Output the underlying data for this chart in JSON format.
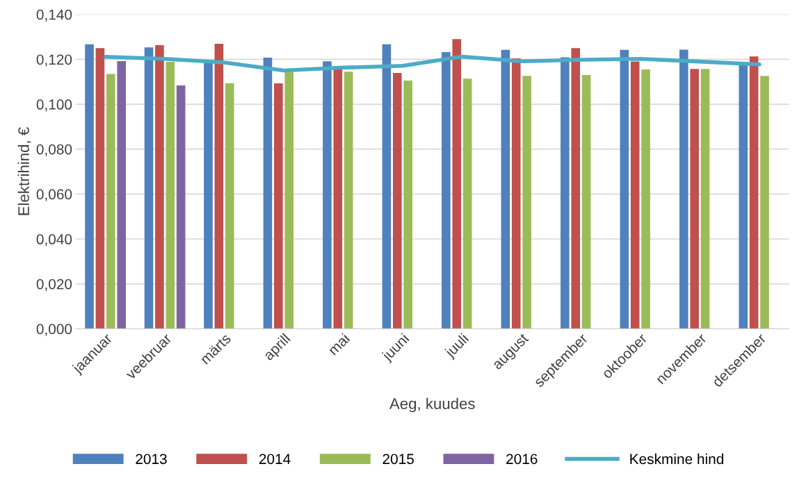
{
  "chart_data": {
    "type": "bar",
    "xlabel": "Aeg, kuudes",
    "ylabel": "Elektrihind, €",
    "categories": [
      "jaanuar",
      "veebruar",
      "märts",
      "aprill",
      "mai",
      "juuni",
      "juuli",
      "august",
      "september",
      "oktoober",
      "november",
      "detsember"
    ],
    "series": [
      {
        "name": "2013",
        "color": "#4f81bd",
        "values": [
          0.1267,
          0.1253,
          0.1186,
          0.1207,
          0.1191,
          0.1267,
          0.1232,
          0.1242,
          0.1209,
          0.1242,
          0.1243,
          0.1188
        ]
      },
      {
        "name": "2014",
        "color": "#c0504d",
        "values": [
          0.125,
          0.1263,
          0.1269,
          0.1093,
          0.1158,
          0.1139,
          0.129,
          0.1204,
          0.125,
          0.119,
          0.1157,
          0.1213
        ]
      },
      {
        "name": "2015",
        "color": "#9bbb59",
        "values": [
          0.1135,
          0.1189,
          0.1094,
          0.1145,
          0.1145,
          0.1105,
          0.1114,
          0.1126,
          0.113,
          0.1155,
          0.1157,
          0.1126
        ]
      },
      {
        "name": "2016",
        "color": "#8064a2",
        "values": [
          0.1192,
          0.1084,
          null,
          null,
          null,
          null,
          null,
          null,
          null,
          null,
          null,
          null
        ]
      },
      {
        "name": "Keskmine hind",
        "type": "line",
        "color": "#4bacc6",
        "values": [
          0.1211,
          0.1202,
          0.1186,
          0.115,
          0.1163,
          0.1171,
          0.1212,
          0.1191,
          0.1198,
          0.1202,
          0.119,
          0.1177
        ]
      }
    ],
    "ylim": [
      0,
      0.14
    ],
    "yticks": [
      {
        "value": 0,
        "label": "0,000"
      },
      {
        "value": 0.02,
        "label": "0,020"
      },
      {
        "value": 0.04,
        "label": "0,040"
      },
      {
        "value": 0.06,
        "label": "0,060"
      },
      {
        "value": 0.08,
        "label": "0,080"
      },
      {
        "value": 0.1,
        "label": "0,100"
      },
      {
        "value": 0.12,
        "label": "0,120"
      },
      {
        "value": 0.14,
        "label": "0,140"
      }
    ],
    "grid": "y",
    "legend": "bottom",
    "marker": "none",
    "line_style": "solid"
  }
}
